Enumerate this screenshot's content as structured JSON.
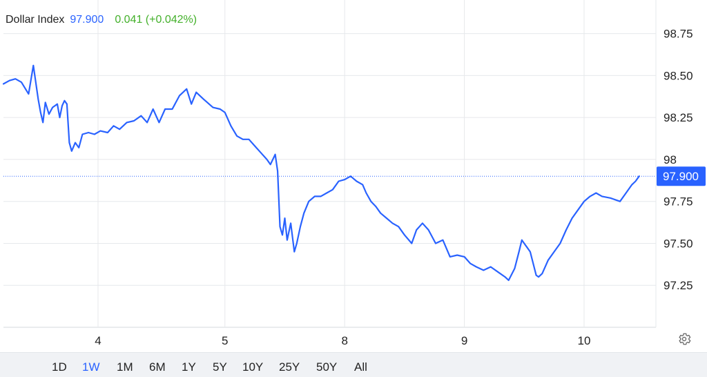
{
  "header": {
    "name": "Dollar Index",
    "price": "97.900",
    "change": "0.041 (+0.042%)"
  },
  "price_label": "97.900",
  "settings_icon": "gear-icon",
  "colors": {
    "line": "#2962ff",
    "change_up": "#43b02a",
    "grid": "#e6e8eb"
  },
  "range_buttons": [
    {
      "label": "1D",
      "active": false
    },
    {
      "label": "1W",
      "active": true
    },
    {
      "label": "1M",
      "active": false
    },
    {
      "label": "6M",
      "active": false
    },
    {
      "label": "1Y",
      "active": false
    },
    {
      "label": "5Y",
      "active": false
    },
    {
      "label": "10Y",
      "active": false
    },
    {
      "label": "25Y",
      "active": false
    },
    {
      "label": "50Y",
      "active": false
    },
    {
      "label": "All",
      "active": false
    }
  ],
  "chart_data": {
    "type": "line",
    "title": "Dollar Index",
    "xlabel": "",
    "ylabel": "",
    "ylim": [
      97.0,
      98.95
    ],
    "y_ticks": [
      97.25,
      97.5,
      97.75,
      98,
      98.25,
      98.5,
      98.75
    ],
    "y_tick_labels": [
      "97.25",
      "97.50",
      "97.75",
      "98",
      "98.25",
      "98.50",
      "98.75"
    ],
    "x_ticks": [
      {
        "label": "4",
        "x": 0.94
      },
      {
        "label": "5",
        "x": 2.0
      },
      {
        "label": "8",
        "x": 3.0
      },
      {
        "label": "9",
        "x": 4.0
      },
      {
        "label": "10",
        "x": 5.0
      }
    ],
    "xlim": [
      0.15,
      5.6
    ],
    "last_price": 97.9,
    "grid": true,
    "legend": "none",
    "series": [
      {
        "values": [
          [
            0.15,
            98.45
          ],
          [
            0.2,
            98.47
          ],
          [
            0.25,
            98.48
          ],
          [
            0.3,
            98.46
          ],
          [
            0.36,
            98.39
          ],
          [
            0.4,
            98.56
          ],
          [
            0.42,
            98.46
          ],
          [
            0.44,
            98.36
          ],
          [
            0.46,
            98.28
          ],
          [
            0.48,
            98.22
          ],
          [
            0.5,
            98.34
          ],
          [
            0.53,
            98.27
          ],
          [
            0.56,
            98.31
          ],
          [
            0.6,
            98.33
          ],
          [
            0.62,
            98.25
          ],
          [
            0.64,
            98.32
          ],
          [
            0.66,
            98.35
          ],
          [
            0.68,
            98.33
          ],
          [
            0.7,
            98.1
          ],
          [
            0.72,
            98.05
          ],
          [
            0.75,
            98.1
          ],
          [
            0.78,
            98.07
          ],
          [
            0.81,
            98.15
          ],
          [
            0.86,
            98.16
          ],
          [
            0.91,
            98.15
          ],
          [
            0.96,
            98.17
          ],
          [
            1.02,
            98.16
          ],
          [
            1.07,
            98.2
          ],
          [
            1.12,
            98.18
          ],
          [
            1.18,
            98.22
          ],
          [
            1.24,
            98.23
          ],
          [
            1.3,
            98.26
          ],
          [
            1.35,
            98.22
          ],
          [
            1.4,
            98.3
          ],
          [
            1.45,
            98.22
          ],
          [
            1.5,
            98.3
          ],
          [
            1.56,
            98.3
          ],
          [
            1.62,
            98.38
          ],
          [
            1.68,
            98.42
          ],
          [
            1.72,
            98.33
          ],
          [
            1.76,
            98.4
          ],
          [
            1.82,
            98.36
          ],
          [
            1.9,
            98.31
          ],
          [
            1.96,
            98.3
          ],
          [
            2.0,
            98.28
          ],
          [
            2.05,
            98.2
          ],
          [
            2.1,
            98.14
          ],
          [
            2.15,
            98.12
          ],
          [
            2.2,
            98.12
          ],
          [
            2.25,
            98.08
          ],
          [
            2.3,
            98.04
          ],
          [
            2.35,
            98.0
          ],
          [
            2.38,
            97.97
          ],
          [
            2.42,
            98.03
          ],
          [
            2.44,
            97.93
          ],
          [
            2.46,
            97.6
          ],
          [
            2.48,
            97.55
          ],
          [
            2.5,
            97.65
          ],
          [
            2.52,
            97.52
          ],
          [
            2.55,
            97.62
          ],
          [
            2.58,
            97.45
          ],
          [
            2.6,
            97.5
          ],
          [
            2.63,
            97.6
          ],
          [
            2.66,
            97.68
          ],
          [
            2.7,
            97.75
          ],
          [
            2.75,
            97.78
          ],
          [
            2.8,
            97.78
          ],
          [
            2.85,
            97.8
          ],
          [
            2.9,
            97.82
          ],
          [
            2.95,
            97.87
          ],
          [
            3.0,
            97.88
          ],
          [
            3.05,
            97.9
          ],
          [
            3.1,
            97.87
          ],
          [
            3.15,
            97.85
          ],
          [
            3.18,
            97.8
          ],
          [
            3.22,
            97.75
          ],
          [
            3.26,
            97.72
          ],
          [
            3.3,
            97.68
          ],
          [
            3.35,
            97.65
          ],
          [
            3.4,
            97.62
          ],
          [
            3.45,
            97.6
          ],
          [
            3.5,
            97.55
          ],
          [
            3.56,
            97.5
          ],
          [
            3.6,
            97.58
          ],
          [
            3.65,
            97.62
          ],
          [
            3.7,
            97.58
          ],
          [
            3.76,
            97.5
          ],
          [
            3.82,
            97.52
          ],
          [
            3.88,
            97.42
          ],
          [
            3.94,
            97.43
          ],
          [
            4.0,
            97.42
          ],
          [
            4.05,
            97.38
          ],
          [
            4.1,
            97.36
          ],
          [
            4.16,
            97.34
          ],
          [
            4.22,
            97.36
          ],
          [
            4.28,
            97.33
          ],
          [
            4.34,
            97.3
          ],
          [
            4.37,
            97.28
          ],
          [
            4.42,
            97.35
          ],
          [
            4.46,
            97.46
          ],
          [
            4.48,
            97.52
          ],
          [
            4.52,
            97.48
          ],
          [
            4.55,
            97.45
          ],
          [
            4.6,
            97.31
          ],
          [
            4.62,
            97.3
          ],
          [
            4.65,
            97.32
          ],
          [
            4.7,
            97.4
          ],
          [
            4.75,
            97.45
          ],
          [
            4.8,
            97.5
          ],
          [
            4.85,
            97.58
          ],
          [
            4.9,
            97.65
          ],
          [
            4.95,
            97.7
          ],
          [
            5.0,
            97.75
          ],
          [
            5.05,
            97.78
          ],
          [
            5.1,
            97.8
          ],
          [
            5.15,
            97.78
          ],
          [
            5.22,
            97.77
          ],
          [
            5.3,
            97.75
          ],
          [
            5.35,
            97.8
          ],
          [
            5.4,
            97.85
          ],
          [
            5.43,
            97.87
          ],
          [
            5.46,
            97.9
          ]
        ]
      }
    ]
  }
}
